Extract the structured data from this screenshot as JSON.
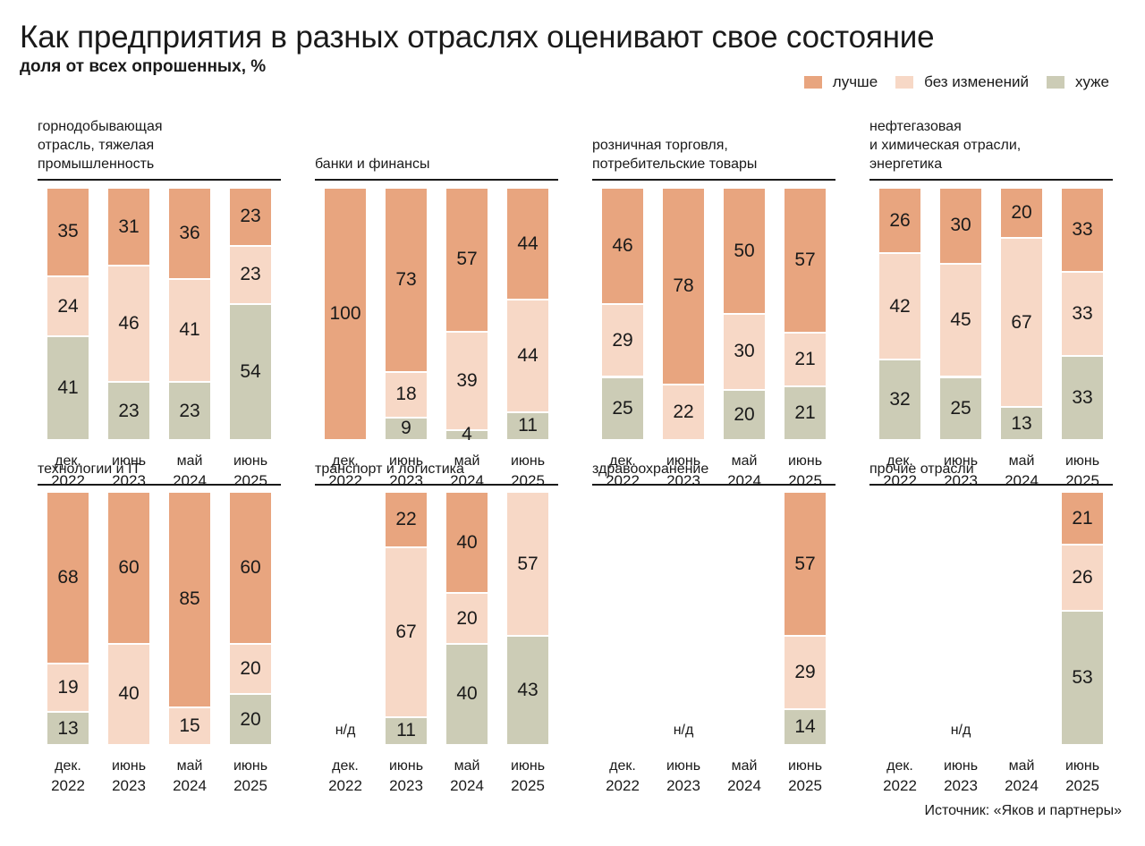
{
  "header": {
    "title": "Как предприятия в разных отраслях оценивают свое состояние",
    "subtitle": "доля от всех опрошенных, %"
  },
  "legend": {
    "items": [
      {
        "label": "лучше",
        "color": "#e8a57f"
      },
      {
        "label": "без изменений",
        "color": "#f7d8c6"
      },
      {
        "label": "хуже",
        "color": "#ccccb6"
      }
    ]
  },
  "footer": {
    "source": "Источник: «Яков и партнеры»"
  },
  "chart_data": {
    "type": "bar",
    "stacked": true,
    "normalized_percent": true,
    "categories": [
      "дек. 2022",
      "июнь 2023",
      "май 2024",
      "июнь 2025"
    ],
    "category_lines": [
      [
        "дек.",
        "2022"
      ],
      [
        "июнь",
        "2023"
      ],
      [
        "май",
        "2024"
      ],
      [
        "июнь",
        "2025"
      ]
    ],
    "series_names": [
      "лучше",
      "без изменений",
      "хуже"
    ],
    "missing_label": "н/д",
    "panels": [
      {
        "title": "горнодобывающая\nотрасль, тяжелая\nпромышленность",
        "values": [
          [
            35,
            24,
            41
          ],
          [
            31,
            46,
            23
          ],
          [
            36,
            41,
            23
          ],
          [
            23,
            23,
            54
          ]
        ]
      },
      {
        "title": "банки и финансы",
        "values": [
          [
            100,
            0,
            0
          ],
          [
            73,
            18,
            9
          ],
          [
            57,
            39,
            4
          ],
          [
            44,
            44,
            11
          ]
        ]
      },
      {
        "title": "розничная торговля,\nпотребительские товары",
        "values": [
          [
            46,
            29,
            25
          ],
          [
            78,
            22,
            0
          ],
          [
            50,
            30,
            20
          ],
          [
            57,
            21,
            21
          ]
        ]
      },
      {
        "title": "нефтегазовая\nи химическая отрасли,\nэнергетика",
        "values": [
          [
            26,
            42,
            32
          ],
          [
            30,
            45,
            25
          ],
          [
            20,
            67,
            13
          ],
          [
            33,
            33,
            33
          ]
        ]
      },
      {
        "title": "технологии и IT",
        "values": [
          [
            68,
            19,
            13
          ],
          [
            60,
            40,
            0
          ],
          [
            85,
            15,
            0
          ],
          [
            60,
            20,
            20
          ]
        ]
      },
      {
        "title": "транспорт и логистика",
        "values": [
          null,
          [
            22,
            67,
            11
          ],
          [
            40,
            20,
            40
          ],
          [
            0,
            57,
            43
          ]
        ]
      },
      {
        "title": "здравоохранение",
        "values": [
          null,
          null,
          null,
          [
            57,
            29,
            14
          ]
        ]
      },
      {
        "title": "прочие отрасли",
        "values": [
          null,
          null,
          null,
          [
            21,
            26,
            53
          ]
        ]
      }
    ]
  }
}
